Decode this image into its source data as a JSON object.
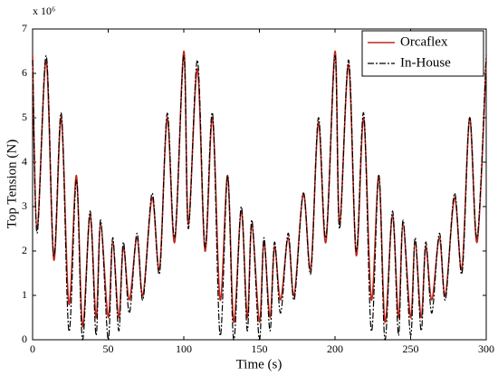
{
  "chart_data": {
    "type": "line",
    "xlabel": "Time (s)",
    "ylabel": "Top Tension (N)",
    "y_multiplier": "x 10⁶",
    "x": [
      0,
      3,
      9,
      14,
      19,
      24,
      29,
      33,
      38,
      42,
      45,
      50,
      53,
      57,
      60,
      64,
      69,
      73,
      79,
      84,
      89,
      94,
      100,
      103,
      109,
      114,
      119,
      124,
      129,
      133,
      138,
      142,
      145,
      150,
      153,
      157,
      160,
      164,
      169,
      173,
      179,
      184,
      189,
      194,
      200,
      203,
      209,
      214,
      219,
      224,
      229,
      233,
      238,
      242,
      245,
      250,
      253,
      257,
      260,
      264,
      269,
      273,
      279,
      284,
      289,
      294,
      300
    ],
    "series": [
      {
        "name": "Orcaflex",
        "color": "#c0281c",
        "values": [
          6.4,
          2.5,
          6.3,
          1.8,
          5.0,
          0.8,
          3.7,
          0.3,
          2.8,
          0.5,
          2.6,
          0.5,
          2.2,
          0.5,
          2.1,
          0.9,
          2.3,
          1.0,
          3.2,
          1.6,
          5.0,
          2.2,
          6.5,
          2.6,
          6.1,
          2.0,
          5.0,
          0.9,
          3.7,
          0.4,
          2.9,
          0.5,
          2.6,
          0.4,
          2.2,
          0.5,
          2.1,
          0.9,
          2.3,
          1.0,
          3.3,
          1.6,
          4.9,
          2.2,
          6.5,
          2.6,
          6.2,
          1.9,
          5.0,
          0.9,
          3.7,
          0.4,
          2.8,
          0.5,
          2.6,
          0.5,
          2.2,
          0.5,
          2.1,
          0.9,
          2.3,
          1.0,
          3.2,
          1.6,
          5.0,
          2.2,
          6.3
        ]
      },
      {
        "name": "In-House",
        "color": "#000000",
        "values": [
          6.3,
          2.4,
          6.4,
          1.9,
          5.1,
          0.2,
          3.6,
          0.0,
          2.9,
          0.1,
          2.7,
          0.0,
          2.3,
          0.2,
          2.2,
          0.6,
          2.4,
          0.9,
          3.3,
          1.5,
          5.1,
          2.3,
          6.4,
          2.5,
          6.3,
          2.1,
          5.1,
          0.1,
          3.7,
          0.0,
          3.0,
          0.2,
          2.7,
          0.0,
          2.3,
          0.2,
          2.2,
          0.6,
          2.4,
          0.9,
          3.3,
          1.5,
          5.0,
          2.3,
          6.4,
          2.5,
          6.3,
          2.0,
          5.1,
          0.2,
          3.7,
          0.0,
          2.9,
          0.1,
          2.7,
          0.1,
          2.3,
          0.2,
          2.2,
          0.6,
          2.4,
          0.9,
          3.3,
          1.5,
          5.0,
          2.3,
          6.4
        ]
      }
    ],
    "xlim": [
      0,
      300
    ],
    "xticks": [
      0,
      50,
      100,
      150,
      200,
      250,
      300
    ],
    "ylim": [
      0,
      7
    ],
    "yticks": [
      0,
      1,
      2,
      3,
      4,
      5,
      6,
      7
    ],
    "legend": "upper right"
  }
}
